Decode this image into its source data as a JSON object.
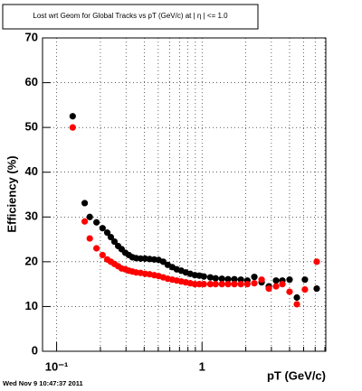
{
  "chart_data": {
    "type": "scatter",
    "title": "Lost wrt Geom for Global Tracks vs pT (GeV/c) at | η | <= 1.0",
    "x_label": "pT (GeV/c)",
    "y_label": "Efficiency (%)",
    "footer": "Wed Nov  9 10:47:37 2011",
    "x_log": true,
    "grid": true,
    "xlim": [
      0.08,
      7.1
    ],
    "ylim": [
      0,
      70
    ],
    "xticks": [
      {
        "value": 0.1,
        "label": "10⁻¹"
      },
      1
    ],
    "xgrid_minor": [
      0.2,
      0.3,
      0.4,
      0.5,
      0.6,
      0.7,
      0.8,
      0.9,
      2,
      3,
      4,
      5,
      6,
      7
    ],
    "yticks": [
      0,
      10,
      20,
      30,
      40,
      50,
      60,
      70
    ],
    "x": [
      0.129,
      0.156,
      0.169,
      0.188,
      0.207,
      0.223,
      0.236,
      0.25,
      0.265,
      0.28,
      0.297,
      0.314,
      0.332,
      0.352,
      0.378,
      0.406,
      0.436,
      0.469,
      0.503,
      0.541,
      0.581,
      0.624,
      0.67,
      0.72,
      0.773,
      0.83,
      0.892,
      0.958,
      1.03,
      1.14,
      1.24,
      1.37,
      1.51,
      1.67,
      1.85,
      2.05,
      2.29,
      2.57,
      2.88,
      3.23,
      3.57,
      4.0,
      4.49,
      5.1,
      6.15
    ],
    "series": [
      {
        "color": "#000000",
        "values": [
          52.5,
          33.1,
          30,
          28.8,
          27.5,
          26.5,
          25.5,
          24.5,
          23.5,
          22.8,
          22,
          21.5,
          21,
          20.8,
          20.7,
          20.7,
          20.6,
          20.5,
          20.4,
          20,
          19.3,
          18.8,
          18.3,
          18,
          17.6,
          17.3,
          17,
          16.9,
          16.7,
          16.5,
          16.3,
          16.2,
          16.1,
          16.1,
          16,
          15.8,
          16.6,
          15.4,
          14.5,
          15.8,
          15.8,
          16,
          12,
          16,
          14
        ]
      },
      {
        "color": "#ff0000",
        "values": [
          50,
          29,
          25.2,
          23,
          21.5,
          20.5,
          20,
          19.5,
          19,
          18.5,
          18.3,
          18,
          17.8,
          17.6,
          17.5,
          17.3,
          17.2,
          17,
          16.8,
          16.5,
          16.2,
          16,
          15.8,
          15.6,
          15.4,
          15.2,
          15,
          15,
          15,
          15,
          15,
          15,
          15,
          15,
          15,
          15,
          15.2,
          16,
          14,
          14.5,
          15,
          13.3,
          10.5,
          13.8,
          20
        ]
      }
    ]
  }
}
